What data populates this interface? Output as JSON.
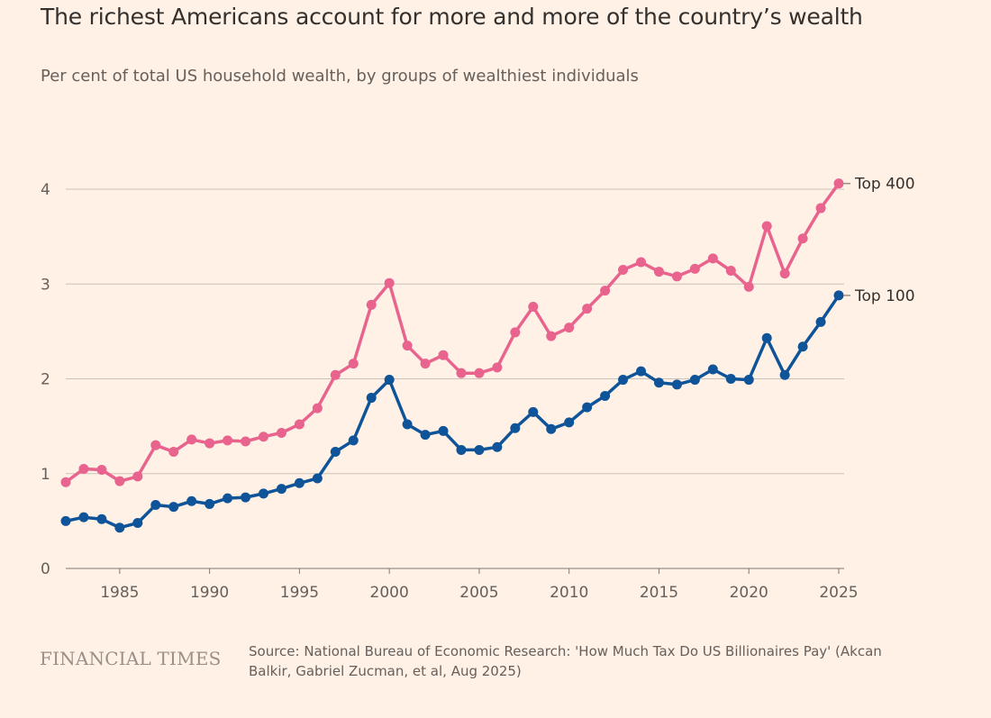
{
  "title": "The richest Americans account for more and more of the country’s wealth",
  "subtitle": "Per cent of total US household wealth, by groups of wealthiest individuals",
  "brand": "FINANCIAL TIMES",
  "source": "Source: National Bureau of Economic Research: 'How Much Tax Do US Billionaires Pay' (Akcan Balkir, Gabriel Zucman, et al, Aug 2025)",
  "chart_data": {
    "type": "line",
    "title": "The richest Americans account for more and more of the country’s wealth",
    "subtitle": "Per cent of total US household wealth, by groups of wealthiest individuals",
    "xlabel": "",
    "ylabel": "",
    "xlim": [
      1982,
      2025
    ],
    "ylim": [
      0,
      4
    ],
    "grid": true,
    "legend": "direct-labels-right",
    "x_ticks": [
      1985,
      1990,
      1995,
      2000,
      2005,
      2010,
      2015,
      2020,
      2025
    ],
    "y_ticks": [
      0,
      1,
      2,
      3,
      4
    ],
    "x": [
      1982,
      1983,
      1984,
      1985,
      1986,
      1987,
      1988,
      1989,
      1990,
      1991,
      1992,
      1993,
      1994,
      1995,
      1996,
      1997,
      1998,
      1999,
      2000,
      2001,
      2002,
      2003,
      2004,
      2005,
      2006,
      2007,
      2008,
      2009,
      2010,
      2011,
      2012,
      2013,
      2014,
      2015,
      2016,
      2017,
      2018,
      2019,
      2020,
      2021,
      2022,
      2023,
      2024,
      2025
    ],
    "series": [
      {
        "name": "Top 400",
        "color": "#e8638e",
        "values": [
          0.91,
          1.05,
          1.04,
          0.92,
          0.97,
          1.3,
          1.23,
          1.36,
          1.32,
          1.35,
          1.34,
          1.39,
          1.43,
          1.52,
          1.69,
          2.04,
          2.16,
          2.78,
          3.01,
          2.35,
          2.16,
          2.25,
          2.06,
          2.06,
          2.12,
          2.49,
          2.76,
          2.45,
          2.54,
          2.74,
          2.93,
          3.15,
          3.23,
          3.13,
          3.08,
          3.16,
          3.27,
          3.14,
          2.97,
          3.61,
          3.11,
          3.48,
          3.8,
          4.06
        ]
      },
      {
        "name": "Top 100",
        "color": "#0f5499",
        "values": [
          0.5,
          0.54,
          0.52,
          0.43,
          0.48,
          0.67,
          0.65,
          0.71,
          0.68,
          0.74,
          0.75,
          0.79,
          0.84,
          0.9,
          0.95,
          1.23,
          1.35,
          1.8,
          1.99,
          1.52,
          1.41,
          1.45,
          1.25,
          1.25,
          1.28,
          1.48,
          1.65,
          1.47,
          1.54,
          1.7,
          1.82,
          1.99,
          2.08,
          1.96,
          1.94,
          1.99,
          2.1,
          2.0,
          1.99,
          2.43,
          2.04,
          2.34,
          2.6,
          2.88
        ]
      }
    ]
  }
}
